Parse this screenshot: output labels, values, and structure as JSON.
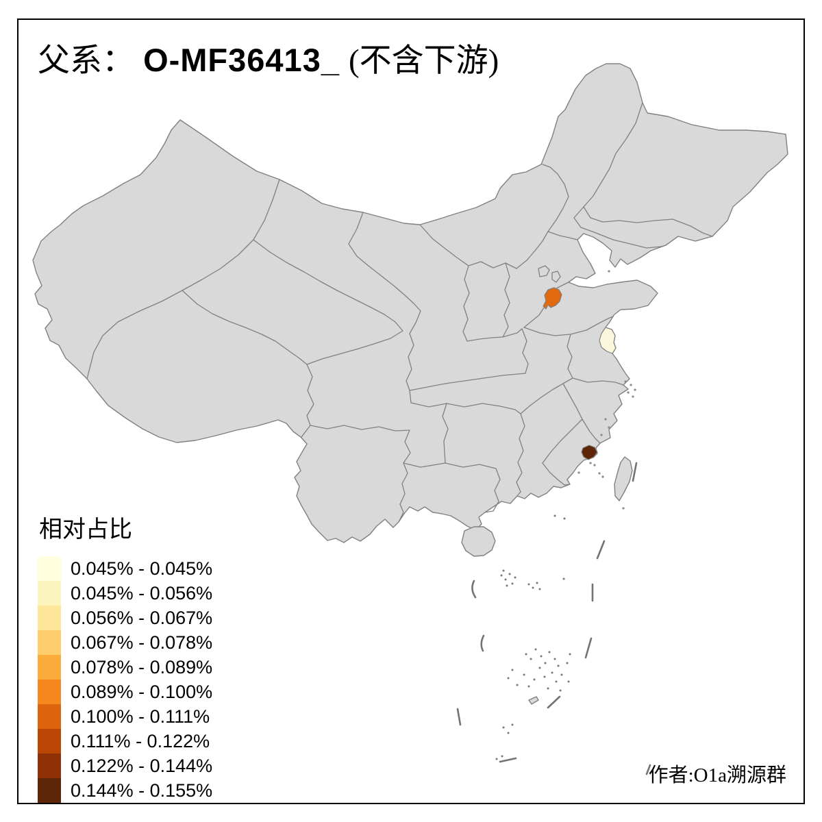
{
  "title": {
    "paternal_label": "父系：",
    "haplogroup": "O-MF36413_",
    "suffix": "(不含下游)"
  },
  "legend": {
    "title": "相对占比",
    "items": [
      {
        "range": "0.045% - 0.045%",
        "color": "#FFFFDF"
      },
      {
        "range": "0.045% - 0.056%",
        "color": "#FCF4BE"
      },
      {
        "range": "0.056% - 0.067%",
        "color": "#FDE59A"
      },
      {
        "range": "0.067% - 0.078%",
        "color": "#FDCE6B"
      },
      {
        "range": "0.078% - 0.089%",
        "color": "#FCAC3C"
      },
      {
        "range": "0.089% - 0.100%",
        "color": "#F5871F"
      },
      {
        "range": "0.100% - 0.111%",
        "color": "#DD650F"
      },
      {
        "range": "0.111% - 0.122%",
        "color": "#BC4604"
      },
      {
        "range": "0.122% - 0.144%",
        "color": "#8E3106"
      },
      {
        "range": "0.144% - 0.155%",
        "color": "#5E2609"
      }
    ]
  },
  "credit": {
    "text": "作者:O1a溯源群"
  },
  "map": {
    "background": "#FFFFFF",
    "base_fill": "#D9D9D9",
    "border_color": "#808080",
    "dash_line_color": "#737373",
    "frame_color": "#000000",
    "highlight_regions": [
      {
        "id": "west-shandong-prefecture",
        "range": "0.100% - 0.111%",
        "color": "#E2690F"
      },
      {
        "id": "coastal-jiangsu-prefecture",
        "range": "0.045% - 0.045%",
        "color": "#FBF7DC"
      },
      {
        "id": "coastal-fujian-prefecture",
        "range": "0.144% - 0.155%",
        "color": "#5E2609"
      }
    ]
  },
  "chart_data": {
    "type": "heatmap",
    "subtype": "choropleth-map-of-china",
    "title": "父系： O-MF36413_ (不含下游)",
    "legend_title": "相对占比",
    "legend_position": "bottom-left",
    "bins": [
      "0.045% - 0.045%",
      "0.045% - 0.056%",
      "0.056% - 0.067%",
      "0.067% - 0.078%",
      "0.078% - 0.089%",
      "0.089% - 0.100%",
      "0.100% - 0.111%",
      "0.111% - 0.122%",
      "0.122% - 0.144%",
      "0.144% - 0.155%"
    ],
    "bin_colors": [
      "#FFFFDF",
      "#FCF4BE",
      "#FDE59A",
      "#FDCE6B",
      "#FCAC3C",
      "#F5871F",
      "#DD650F",
      "#BC4604",
      "#8E3106",
      "#5E2609"
    ],
    "highlighted_regions": [
      {
        "approx_location": "western Shandong prefecture",
        "bin": "0.100% - 0.111%"
      },
      {
        "approx_location": "coastal central Jiangsu prefecture",
        "bin": "0.045% - 0.045%"
      },
      {
        "approx_location": "coastal southern Fujian prefecture",
        "bin": "0.144% - 0.155%"
      }
    ],
    "annotation": "作者:O1a溯源群"
  }
}
